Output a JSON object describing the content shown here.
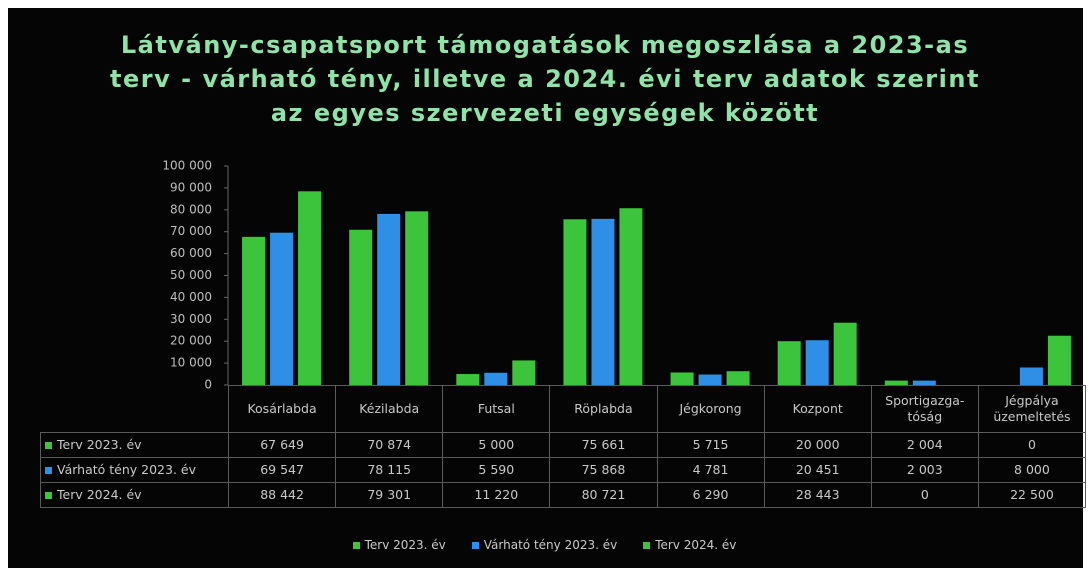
{
  "chart_data": {
    "type": "bar",
    "title": "Látvány-csapatsport támogatások megoszlása a 2023-as terv - várható tény, illetve a 2024. évi terv adatok szerint az egyes szervezeti egységek között",
    "categories": [
      "Kosárlabda",
      "Kézilabda",
      "Futsal",
      "Röplabda",
      "Jégkorong",
      "Kozpont",
      "Sportigazga-tóság",
      "Jégpálya üzemeltetés"
    ],
    "series": [
      {
        "name": "Terv 2023. év",
        "color": "#3cc43c",
        "values": [
          67649,
          70874,
          5000,
          75661,
          5715,
          20000,
          2004,
          0
        ],
        "value_labels": [
          "67 649",
          "70 874",
          "5 000",
          "75 661",
          "5 715",
          "20 000",
          "2 004",
          "0"
        ]
      },
      {
        "name": "Várható tény 2023. év",
        "color": "#2f8fe6",
        "values": [
          69547,
          78115,
          5590,
          75868,
          4781,
          20451,
          2003,
          8000
        ],
        "value_labels": [
          "69 547",
          "78 115",
          "5 590",
          "75 868",
          "4 781",
          "20 451",
          "2 003",
          "8 000"
        ]
      },
      {
        "name": "Terv 2024. év",
        "color": "#3cc43c",
        "values": [
          88442,
          79301,
          11220,
          80721,
          6290,
          28443,
          0,
          22500
        ],
        "value_labels": [
          "88 442",
          "79 301",
          "11 220",
          "80 721",
          "6 290",
          "28 443",
          "0",
          "22 500"
        ]
      }
    ],
    "ylim": [
      0,
      100000
    ],
    "yticks": [
      0,
      {
        "value": 10000,
        "label": "10 000"
      },
      {
        "value": 20000,
        "label": "20 000"
      },
      {
        "value": 30000,
        "label": "30 000"
      },
      {
        "value": 40000,
        "label": "40 000"
      },
      {
        "value": 50000,
        "label": "50 000"
      },
      {
        "value": 60000,
        "label": "60 000"
      },
      {
        "value": 70000,
        "label": "70 000"
      },
      {
        "value": 80000,
        "label": "80 000"
      },
      {
        "value": 90000,
        "label": "90 000"
      },
      {
        "value": 100000,
        "label": "100 000"
      }
    ],
    "grid": false,
    "legend": "bottom"
  }
}
